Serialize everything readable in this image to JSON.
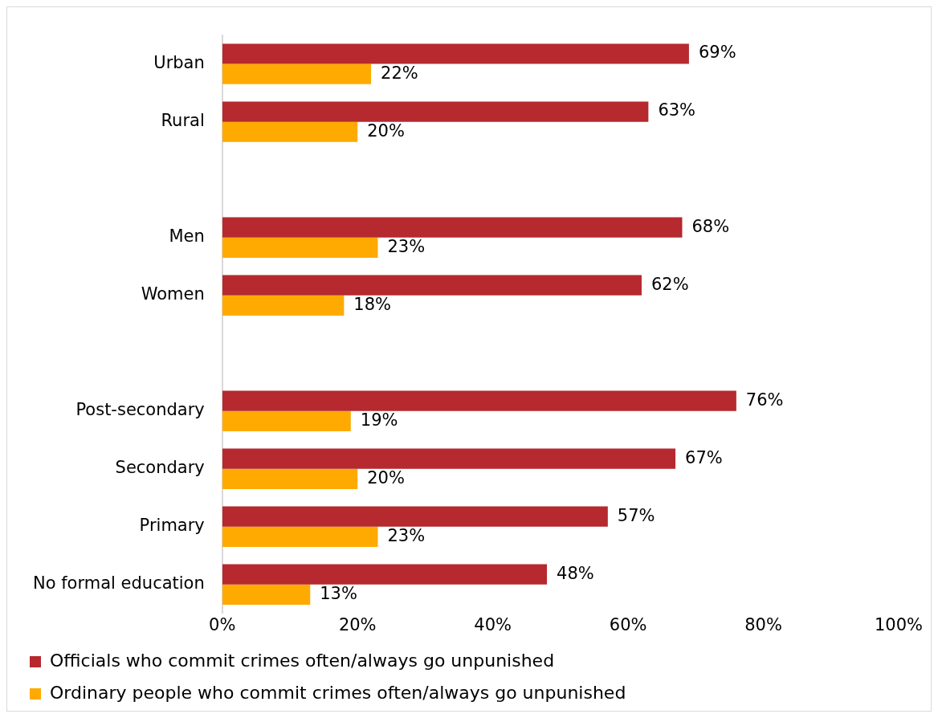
{
  "chart_data": {
    "type": "bar",
    "orientation": "horizontal",
    "categories": [
      "Urban",
      "Rural",
      null,
      "Men",
      "Women",
      null,
      "Post-secondary",
      "Secondary",
      "Primary",
      "No formal education"
    ],
    "series": [
      {
        "name": "Officials who commit crimes often/always go unpunished",
        "color": "#b5292f",
        "values": [
          69,
          63,
          null,
          68,
          62,
          null,
          76,
          67,
          57,
          48
        ],
        "value_labels": [
          "69%",
          "63%",
          null,
          "68%",
          "62%",
          null,
          "76%",
          "67%",
          "57%",
          "48%"
        ]
      },
      {
        "name": "Ordinary people who commit crimes often/always go unpunished",
        "color": "#ffaa00",
        "values": [
          22,
          20,
          null,
          23,
          18,
          null,
          19,
          20,
          23,
          13
        ],
        "value_labels": [
          "22%",
          "20%",
          null,
          "23%",
          "18%",
          null,
          "19%",
          "20%",
          "23%",
          "13%"
        ]
      }
    ],
    "xlim": [
      0,
      100
    ],
    "xticks": [
      {
        "value": 0,
        "label": "0%"
      },
      {
        "value": 20,
        "label": "20%"
      },
      {
        "value": 40,
        "label": "40%"
      },
      {
        "value": 60,
        "label": "60%"
      },
      {
        "value": 80,
        "label": "80%"
      },
      {
        "value": 100,
        "label": "100%"
      }
    ],
    "grid": false,
    "legend": "bottom"
  }
}
